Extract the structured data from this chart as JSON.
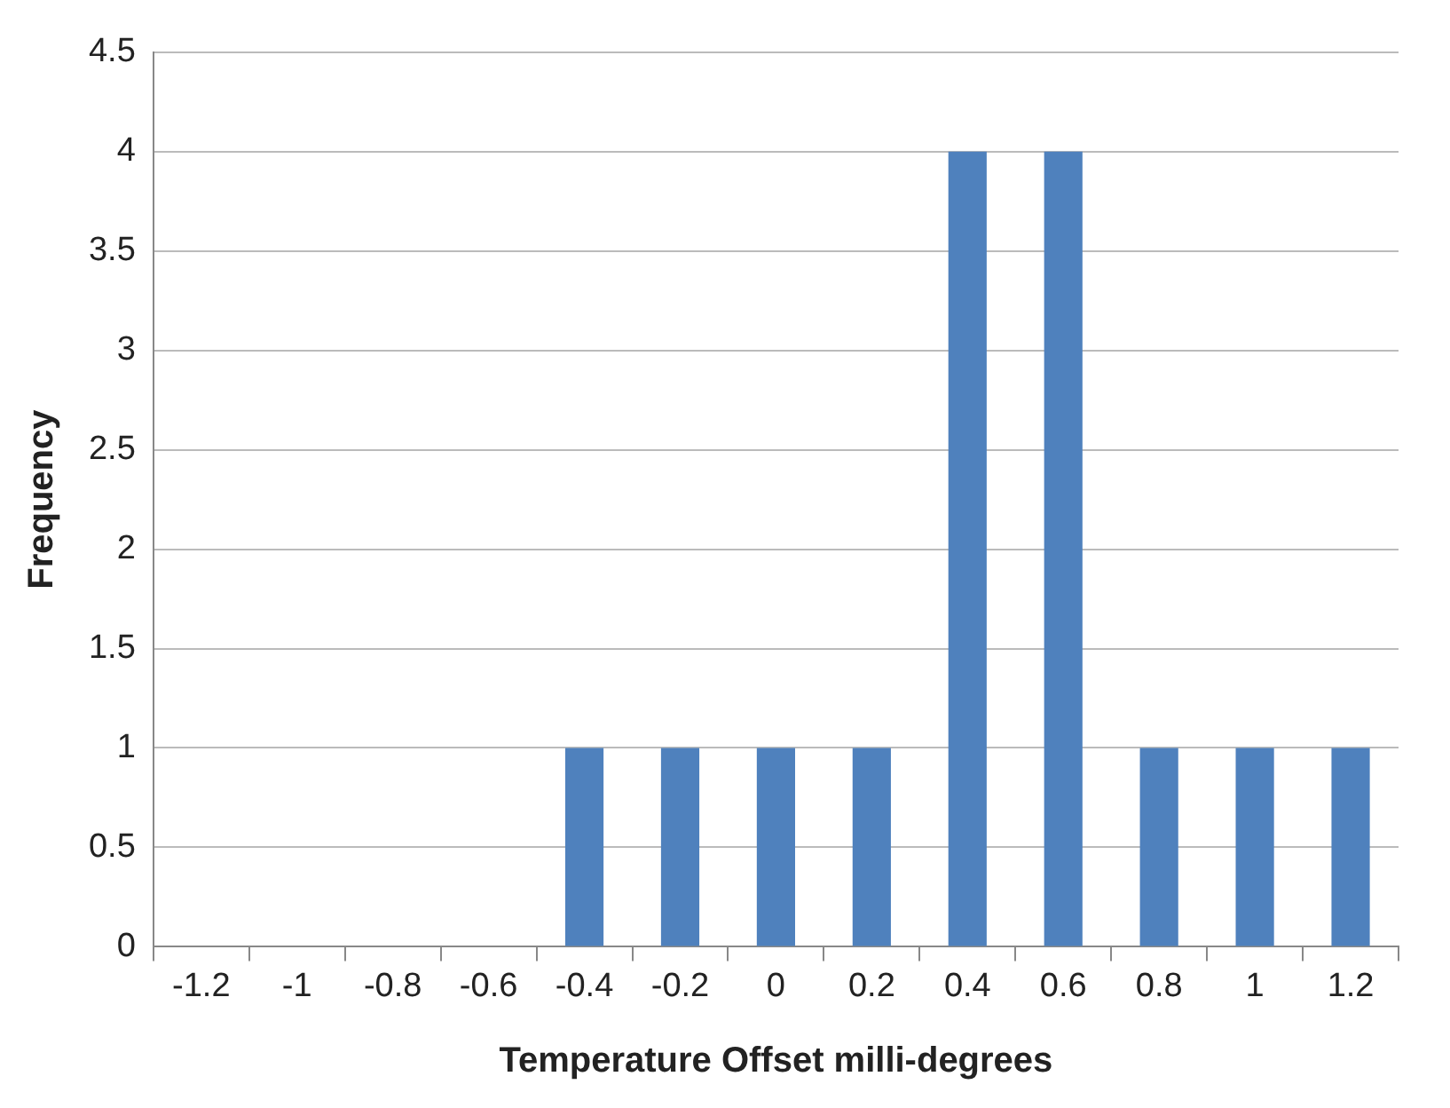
{
  "chart_data": {
    "type": "bar",
    "xlabel": "Temperature Offset milli-degrees",
    "ylabel": "Frequency",
    "categories": [
      "-1.2",
      "-1",
      "-0.8",
      "-0.6",
      "-0.4",
      "-0.2",
      "0",
      "0.2",
      "0.4",
      "0.6",
      "0.8",
      "1",
      "1.2"
    ],
    "values": [
      0,
      0,
      0,
      0,
      1,
      1,
      1,
      1,
      4,
      4,
      1,
      1,
      1
    ],
    "color": "#4f81bd",
    "ylim": [
      0,
      4.5
    ],
    "yticks": [
      0,
      0.5,
      1,
      1.5,
      2,
      2.5,
      3,
      3.5,
      4,
      4.5
    ],
    "grid": "y",
    "legend": false
  }
}
